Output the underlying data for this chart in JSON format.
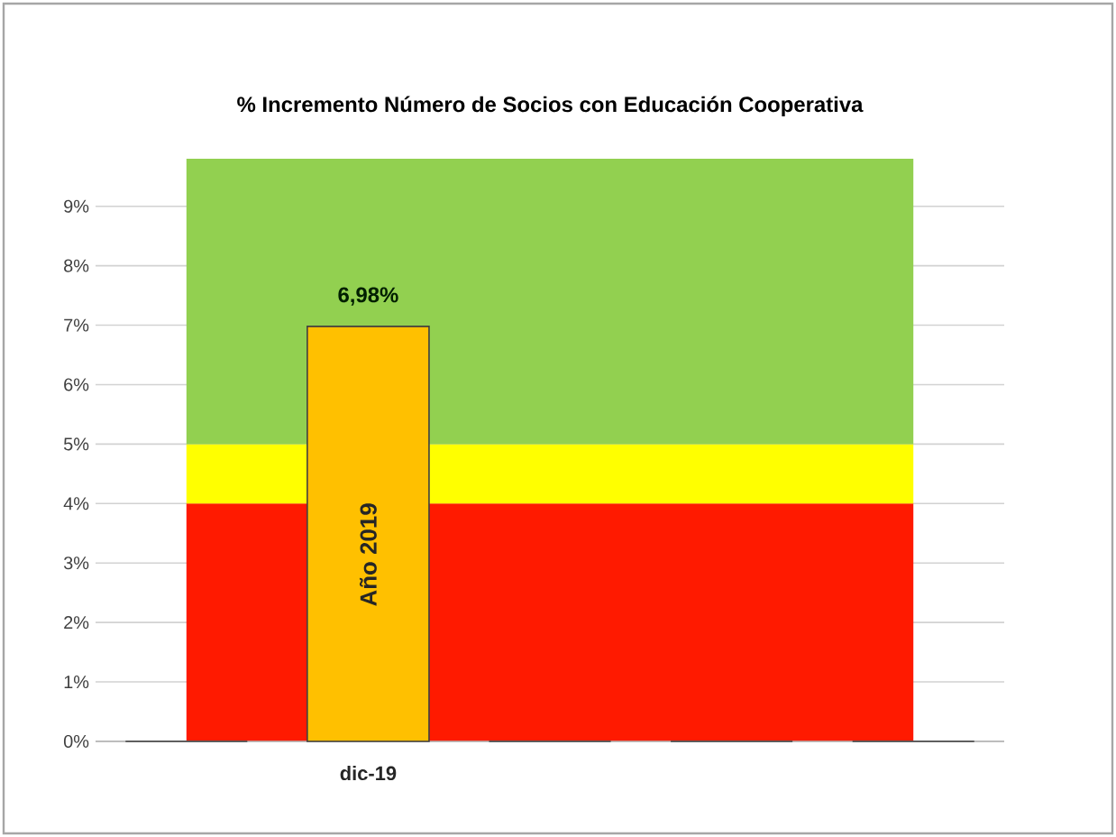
{
  "chart_data": {
    "type": "bar",
    "title": "% Incremento Número de Socios con Educación Cooperativa",
    "categories": [
      null,
      "dic-19",
      null,
      null,
      null
    ],
    "values": [
      0,
      6.98,
      0,
      0,
      0
    ],
    "color": "#ffc000",
    "value_labels": [
      null,
      "6,98%",
      null,
      null,
      null
    ],
    "annotations": [
      "Año 2019"
    ],
    "ylim": [
      0,
      9.8
    ],
    "yticks": [
      {
        "value": 0,
        "label": "0%"
      },
      {
        "value": 1,
        "label": "1%"
      },
      {
        "value": 2,
        "label": "2%"
      },
      {
        "value": 3,
        "label": "3%"
      },
      {
        "value": 4,
        "label": "4%"
      },
      {
        "value": 5,
        "label": "5%"
      },
      {
        "value": 6,
        "label": "6%"
      },
      {
        "value": 7,
        "label": "7%"
      },
      {
        "value": 8,
        "label": "8%"
      },
      {
        "value": 9,
        "label": "9%"
      }
    ],
    "bands": [
      {
        "axis": "y",
        "from": 0,
        "to": 4,
        "color": "#ff1a00"
      },
      {
        "axis": "y",
        "from": 4,
        "to": 5,
        "color": "#ffff00"
      },
      {
        "axis": "y",
        "from": 5,
        "to": 9.8,
        "color": "#92d050"
      }
    ],
    "grid": "y"
  }
}
